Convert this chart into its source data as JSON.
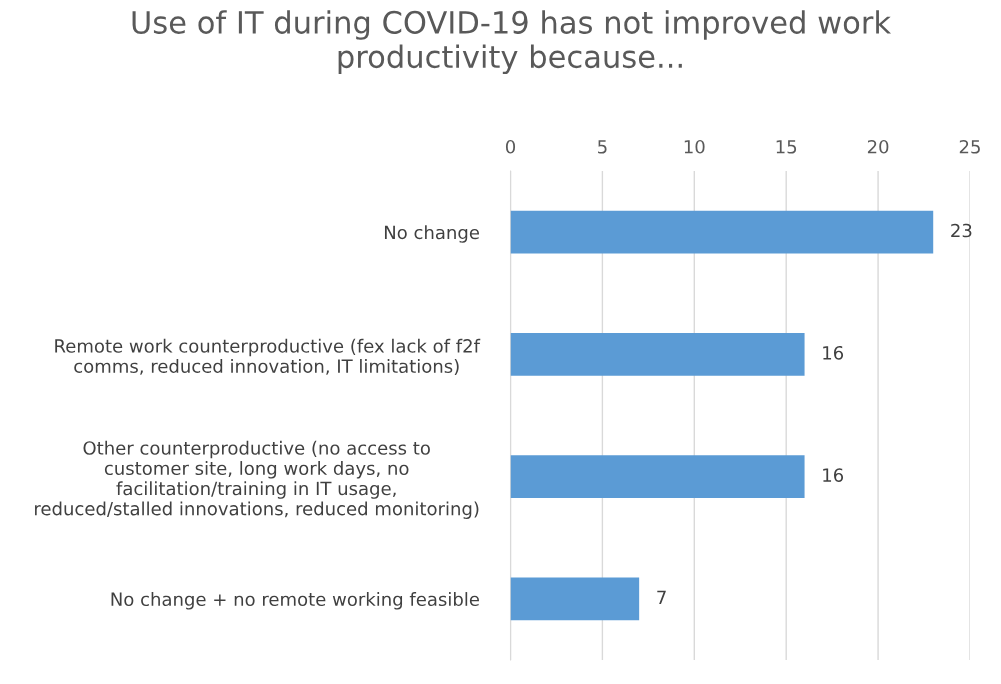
{
  "chart_data": {
    "type": "bar",
    "orientation": "horizontal",
    "title": "Use of IT during COVID-19 has not improved work\nproductivity because...",
    "categories": [
      "No change",
      "Remote work counterproductive (fex lack of f2f\ncomms, reduced innovation, IT limitations)",
      "Other counterproductive (no access to\ncustomer site, long work days, no\nfacilitation/training in IT usage,\nreduced/stalled innovations, reduced monitoring)",
      "No change + no remote working feasible"
    ],
    "values": [
      23,
      16,
      16,
      7
    ],
    "color": "#5b9bd5",
    "xlim": [
      0,
      25
    ],
    "xticks": [
      0,
      5,
      10,
      15,
      20,
      25
    ],
    "grid": "x",
    "data_labels": true,
    "legend": false
  }
}
